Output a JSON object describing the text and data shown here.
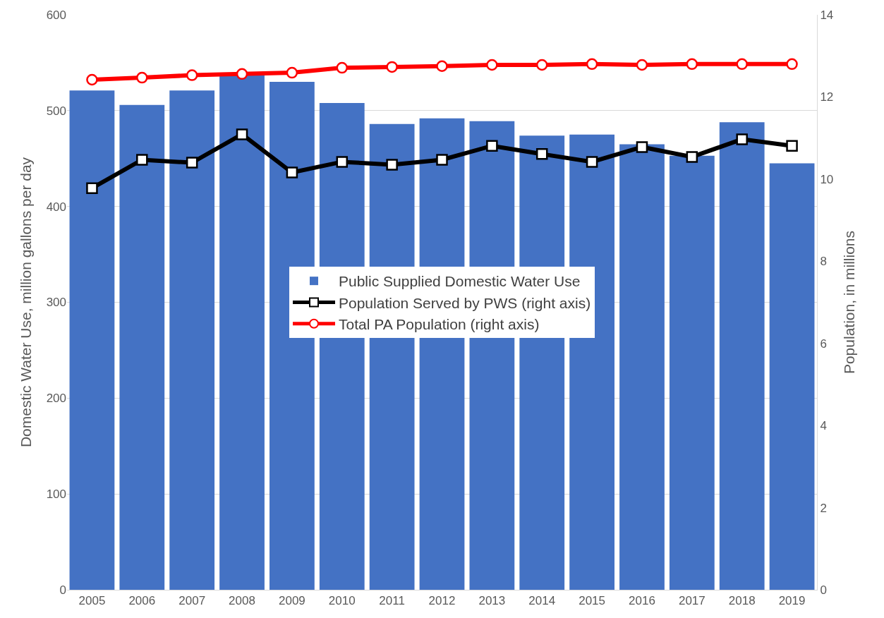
{
  "chart_data": {
    "type": "bar",
    "ylabel": "Domestic Water Use, million gallons per day",
    "y2label": "Population, in millions",
    "categories": [
      "2005",
      "2006",
      "2007",
      "2008",
      "2009",
      "2010",
      "2011",
      "2012",
      "2013",
      "2014",
      "2015",
      "2016",
      "2017",
      "2018",
      "2019"
    ],
    "series": [
      {
        "name": "Public Supplied Domestic Water Use",
        "color": "#4472c4",
        "values": [
          521,
          506,
          521,
          538,
          530,
          508,
          486,
          492,
          489,
          474,
          475,
          465,
          453,
          488,
          445
        ]
      },
      {
        "name": "Population Served by PWS (right axis)",
        "type": "line",
        "axis": "y2",
        "color": "#000000",
        "marker": "square",
        "values": [
          9.78,
          10.47,
          10.4,
          11.09,
          10.16,
          10.42,
          10.35,
          10.47,
          10.81,
          10.61,
          10.42,
          10.78,
          10.54,
          10.97,
          10.81
        ]
      },
      {
        "name": "Total PA Population (right axis)",
        "type": "line",
        "axis": "y2",
        "color": "#ff0000",
        "marker": "circle",
        "values": [
          12.42,
          12.47,
          12.53,
          12.56,
          12.59,
          12.71,
          12.73,
          12.75,
          12.78,
          12.78,
          12.8,
          12.78,
          12.8,
          12.8,
          12.8
        ]
      }
    ],
    "ylim": [
      0,
      600
    ],
    "yticks": [
      0,
      100,
      200,
      300,
      400,
      500,
      600
    ],
    "y2lim": [
      0,
      14
    ],
    "y2ticks": [
      0,
      2,
      4,
      6,
      8,
      10,
      12,
      14
    ],
    "grid": "y",
    "legend": "center"
  }
}
